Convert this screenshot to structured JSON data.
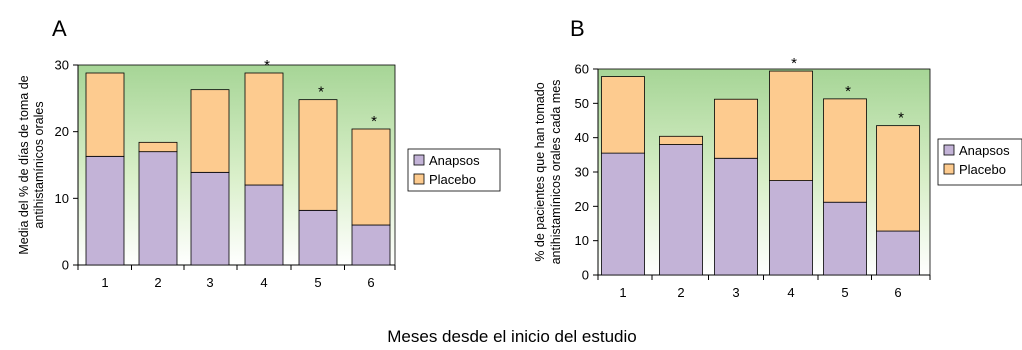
{
  "figure": {
    "caption": "Meses desde el inicio del estudio"
  },
  "chart_data": [
    {
      "panel": "A",
      "type": "bar",
      "stacked": true,
      "categories": [
        "1",
        "2",
        "3",
        "4",
        "5",
        "6"
      ],
      "series": [
        {
          "name": "Anapsos",
          "color": "#c3b3d7",
          "values": [
            16.3,
            17.0,
            13.9,
            12.0,
            8.2,
            6.0
          ]
        },
        {
          "name": "Placebo",
          "color": "#fdcb8f",
          "values": [
            12.5,
            1.4,
            12.4,
            16.8,
            16.6,
            14.4
          ]
        }
      ],
      "significance_marks": [
        "",
        "",
        "",
        "*",
        "*",
        "*"
      ],
      "ylabel_lines": [
        "Media del % de días de toma de",
        "antihistamínicos orales"
      ],
      "ylim": [
        0,
        30
      ],
      "yticks": [
        0,
        10,
        20,
        30
      ],
      "background": "green-to-white vertical gradient",
      "legend_position": "right"
    },
    {
      "panel": "B",
      "type": "bar",
      "stacked": true,
      "categories": [
        "1",
        "2",
        "3",
        "4",
        "5",
        "6"
      ],
      "series": [
        {
          "name": "Anapsos",
          "color": "#c3b3d7",
          "values": [
            35.5,
            38.0,
            34.0,
            27.5,
            21.2,
            12.8
          ]
        },
        {
          "name": "Placebo",
          "color": "#fdcb8f",
          "values": [
            22.3,
            2.4,
            17.2,
            31.9,
            30.1,
            30.7
          ]
        }
      ],
      "significance_marks": [
        "",
        "",
        "",
        "*",
        "*",
        "*"
      ],
      "ylabel_lines": [
        "% de pacientes que han tomado",
        "antihistamínicos orales cada mes"
      ],
      "ylim": [
        0,
        60
      ],
      "yticks": [
        0,
        10,
        20,
        30,
        40,
        50,
        60
      ],
      "background": "green-to-white vertical gradient",
      "legend_position": "right"
    }
  ]
}
